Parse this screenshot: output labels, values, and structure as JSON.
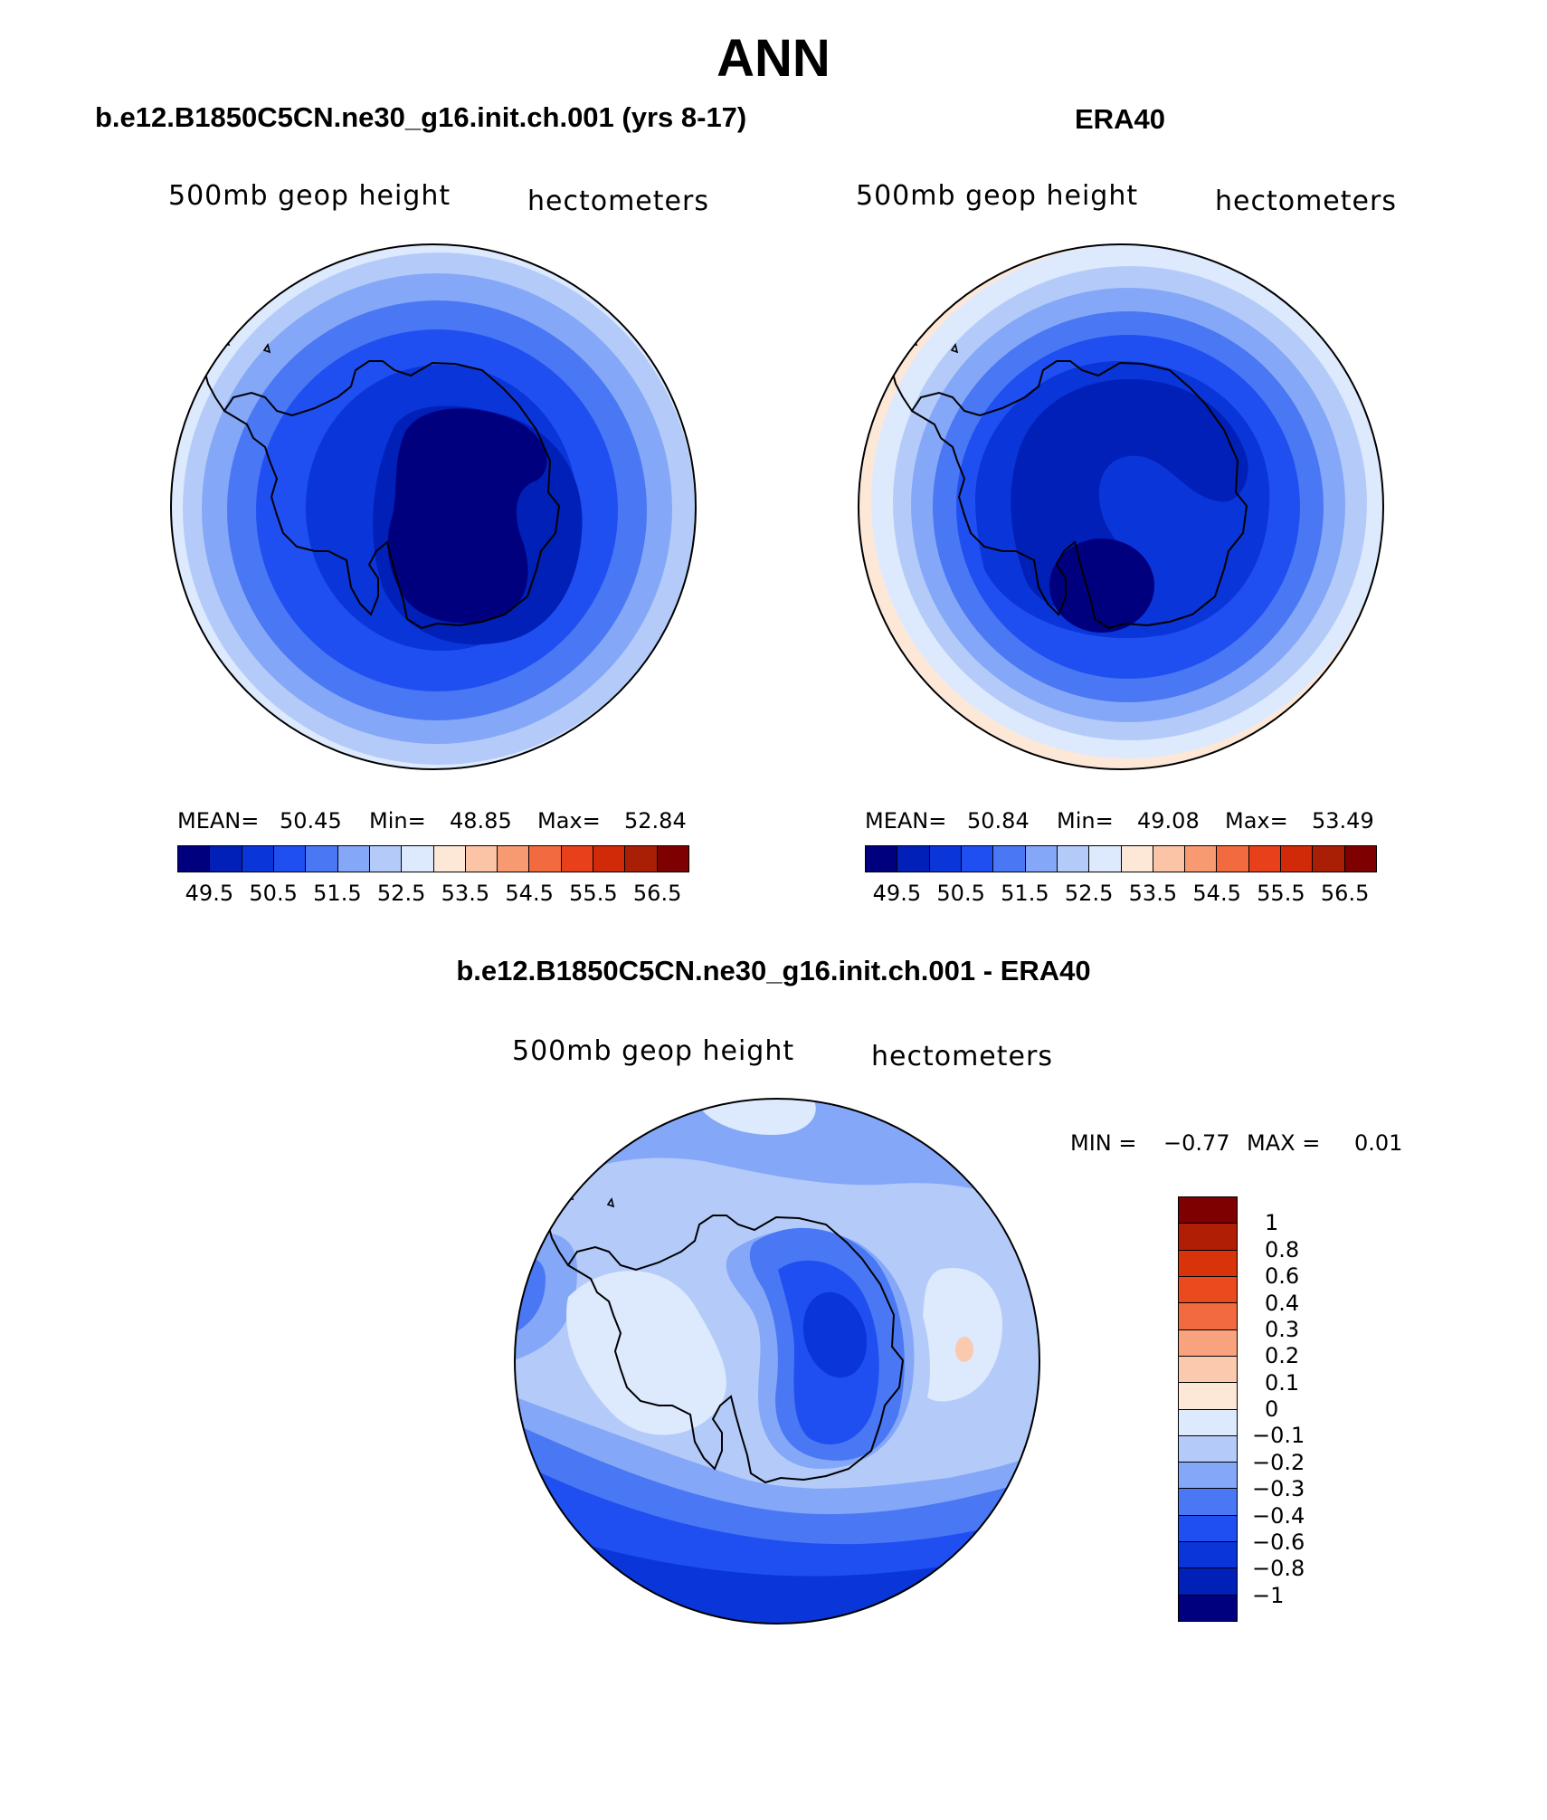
{
  "title": "ANN",
  "panels": {
    "model": {
      "title": "b.e12.B1850C5CN.ne30_g16.init.ch.001 (yrs 8-17)",
      "variable": "500mb geop height",
      "units": "hectometers",
      "stats": {
        "mean_label": "MEAN=",
        "mean": "50.45",
        "min_label": "Min=",
        "min": "48.85",
        "max_label": "Max=",
        "max": "52.84"
      }
    },
    "obs": {
      "title": "ERA40",
      "variable": "500mb geop height",
      "units": "hectometers",
      "stats": {
        "mean_label": "MEAN=",
        "mean": "50.84",
        "min_label": "Min=",
        "min": "49.08",
        "max_label": "Max=",
        "max": "53.49"
      }
    },
    "diff": {
      "title": "b.e12.B1850C5CN.ne30_g16.init.ch.001 - ERA40",
      "variable": "500mb geop height",
      "units": "hectometers",
      "stats": {
        "min_label": "MIN =",
        "min": "−0.77",
        "max_label": "MAX =",
        "max": "0.01"
      }
    }
  },
  "colorbar_main": {
    "ticks": [
      "49.5",
      "50.5",
      "51.5",
      "52.5",
      "53.5",
      "54.5",
      "55.5",
      "56.5"
    ],
    "colors": [
      "#00007f",
      "#0020b8",
      "#0a35d8",
      "#1f4ff0",
      "#4a78f4",
      "#84a8f7",
      "#b4cbfa",
      "#dde9fd",
      "#fde8d8",
      "#fbc4a6",
      "#f79a72",
      "#f26a40",
      "#e8401a",
      "#d02a08",
      "#a81f05",
      "#7f0000"
    ]
  },
  "colorbar_diff": {
    "ticks": [
      "1",
      "0.8",
      "0.6",
      "0.4",
      "0.3",
      "0.2",
      "0.1",
      "0",
      "−0.1",
      "−0.2",
      "−0.3",
      "−0.4",
      "−0.6",
      "−0.8",
      "−1"
    ],
    "colors": [
      "#7f0000",
      "#b01e05",
      "#d8330a",
      "#ea4a1c",
      "#f26a40",
      "#f8a27e",
      "#fbc9ad",
      "#fde8d8",
      "#dde9fd",
      "#b4cbfa",
      "#84a8f7",
      "#4a78f4",
      "#1f4ff0",
      "#0a35d8",
      "#0020b8",
      "#00007f"
    ]
  }
}
